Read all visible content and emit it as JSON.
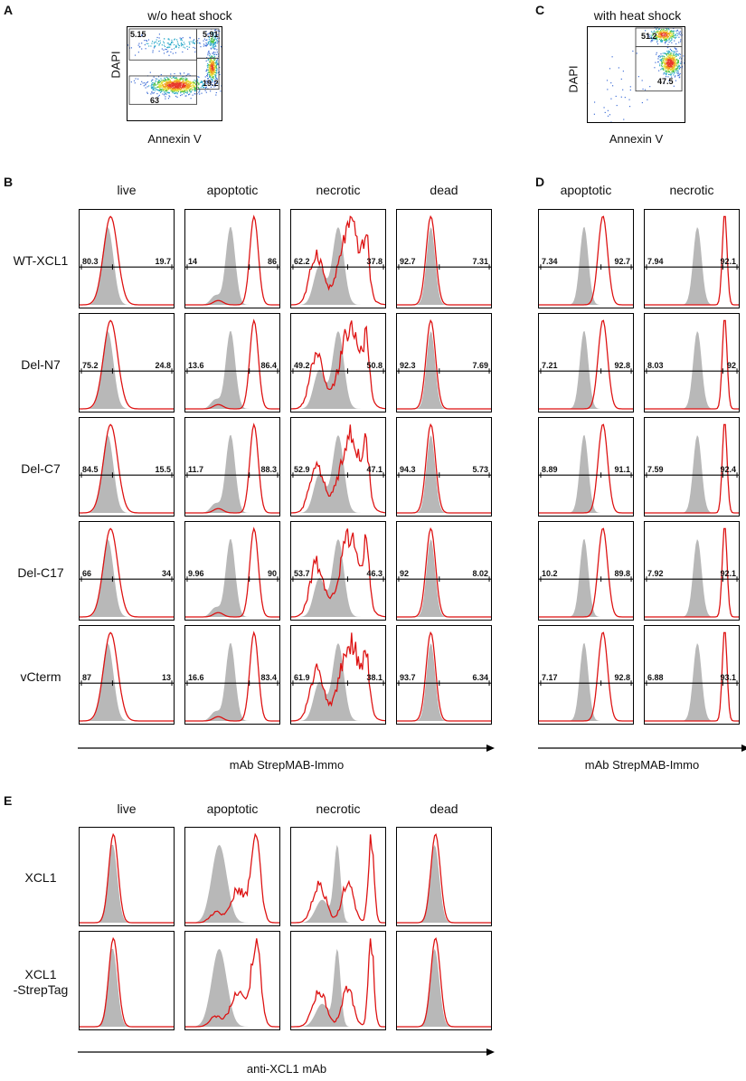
{
  "panel_letters": {
    "A": "A",
    "B": "B",
    "C": "C",
    "D": "D",
    "E": "E"
  },
  "scatter_A": {
    "title": "w/o heat shock",
    "xlabel": "Annexin V",
    "ylabel": "DAPI",
    "gates": {
      "top_left": "5.15",
      "top_right": "5.91",
      "right": "19.2",
      "bottom": "63"
    }
  },
  "scatter_C": {
    "title": "with heat shock",
    "xlabel": "Annexin V",
    "ylabel": "DAPI",
    "gates": {
      "upper": "51.2",
      "lower": "47.5"
    }
  },
  "colors": {
    "stain": "#dd1111",
    "control": "#b8b8b8"
  },
  "chart_data": [
    {
      "type": "histogram-grid",
      "panel": "B",
      "xlabel": "mAb StrepMAB-Immo",
      "columns": [
        "live",
        "apoptotic",
        "necrotic",
        "dead"
      ],
      "rows": [
        "WT-XCL1",
        "Del-N7",
        "Del-C7",
        "Del-C17",
        "vCterm"
      ],
      "values": [
        [
          [
            "80.3",
            "19.7"
          ],
          [
            "14",
            "86"
          ],
          [
            "62.2",
            "37.8"
          ],
          [
            "92.7",
            "7.31"
          ]
        ],
        [
          [
            "75.2",
            "24.8"
          ],
          [
            "13.6",
            "86.4"
          ],
          [
            "49.2",
            "50.8"
          ],
          [
            "92.3",
            "7.69"
          ]
        ],
        [
          [
            "84.5",
            "15.5"
          ],
          [
            "11.7",
            "88.3"
          ],
          [
            "52.9",
            "47.1"
          ],
          [
            "94.3",
            "5.73"
          ]
        ],
        [
          [
            "66",
            "34"
          ],
          [
            "9.96",
            "90"
          ],
          [
            "53.7",
            "46.3"
          ],
          [
            "92",
            "8.02"
          ]
        ],
        [
          [
            "87",
            "13"
          ],
          [
            "16.6",
            "83.4"
          ],
          [
            "61.9",
            "38.1"
          ],
          [
            "93.7",
            "6.34"
          ]
        ]
      ]
    },
    {
      "type": "histogram-grid",
      "panel": "D",
      "xlabel": "mAb StrepMAB-Immo",
      "columns": [
        "apoptotic",
        "necrotic"
      ],
      "rows": [
        "WT-XCL1",
        "Del-N7",
        "Del-C7",
        "Del-C17",
        "vCterm"
      ],
      "values": [
        [
          [
            "7.34",
            "92.7"
          ],
          [
            "7.94",
            "92.1"
          ]
        ],
        [
          [
            "7.21",
            "92.8"
          ],
          [
            "8.03",
            "92"
          ]
        ],
        [
          [
            "8.89",
            "91.1"
          ],
          [
            "7.59",
            "92.4"
          ]
        ],
        [
          [
            "10.2",
            "89.8"
          ],
          [
            "7.92",
            "92.1"
          ]
        ],
        [
          [
            "7.17",
            "92.8"
          ],
          [
            "6.88",
            "93.1"
          ]
        ]
      ]
    },
    {
      "type": "histogram-grid",
      "panel": "E",
      "xlabel": "anti-XCL1 mAb",
      "columns": [
        "live",
        "apoptotic",
        "necrotic",
        "dead"
      ],
      "rows": [
        "XCL1",
        "XCL1\n-StrepTag"
      ],
      "values": []
    }
  ]
}
